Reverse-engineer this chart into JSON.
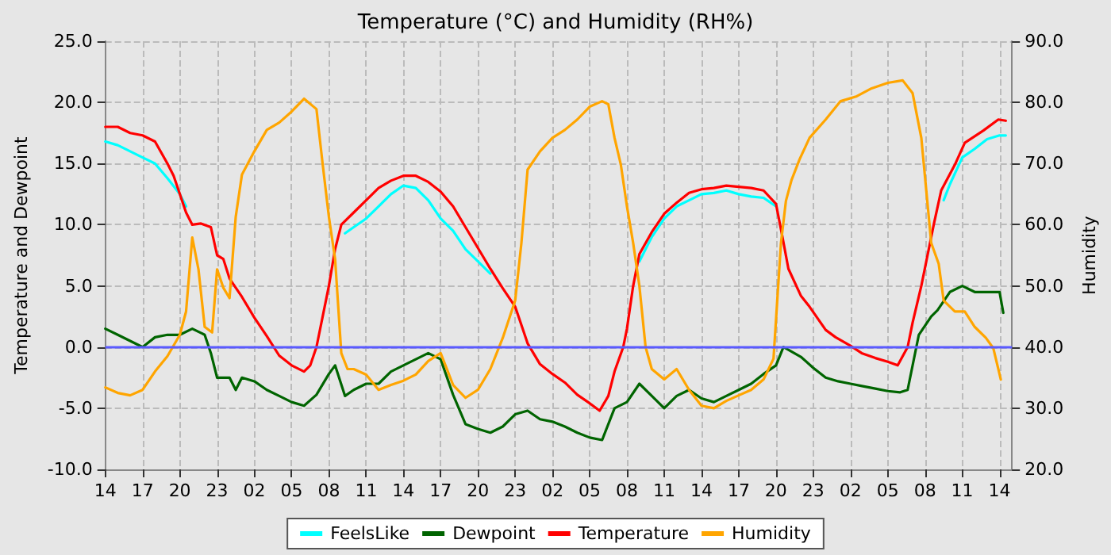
{
  "chart_data": {
    "type": "line",
    "title": "Temperature (°C) and Humidity (RH%)",
    "ylabel": "Temperature and Dewpoint",
    "y2label": "Humidity",
    "xlim": [
      "--01-01T14:00",
      "--01-04T15:00"
    ],
    "ylim": [
      -10,
      25
    ],
    "y2lim": [
      20,
      90
    ],
    "xticks": [
      {
        "value": "--01-01T14:00",
        "label": "14"
      },
      {
        "value": "--01-01T17:00",
        "label": "17"
      },
      {
        "value": "--01-01T20:00",
        "label": "20"
      },
      {
        "value": "--01-01T23:00",
        "label": "23"
      },
      {
        "value": "--01-02T02:00",
        "label": "02"
      },
      {
        "value": "--01-02T05:00",
        "label": "05"
      },
      {
        "value": "--01-02T08:00",
        "label": "08"
      },
      {
        "value": "--01-02T11:00",
        "label": "11"
      },
      {
        "value": "--01-02T14:00",
        "label": "14"
      },
      {
        "value": "--01-02T17:00",
        "label": "17"
      },
      {
        "value": "--01-02T20:00",
        "label": "20"
      },
      {
        "value": "--01-02T23:00",
        "label": "23"
      },
      {
        "value": "--01-03T02:00",
        "label": "02"
      },
      {
        "value": "--01-03T05:00",
        "label": "05"
      },
      {
        "value": "--01-03T08:00",
        "label": "08"
      },
      {
        "value": "--01-03T11:00",
        "label": "11"
      },
      {
        "value": "--01-03T14:00",
        "label": "14"
      },
      {
        "value": "--01-03T17:00",
        "label": "17"
      },
      {
        "value": "--01-03T20:00",
        "label": "20"
      },
      {
        "value": "--01-03T23:00",
        "label": "23"
      },
      {
        "value": "--01-04T02:00",
        "label": "02"
      },
      {
        "value": "--01-04T05:00",
        "label": "05"
      },
      {
        "value": "--01-04T08:00",
        "label": "08"
      },
      {
        "value": "--01-04T11:00",
        "label": "11"
      },
      {
        "value": "--01-04T14:00",
        "label": "14"
      }
    ],
    "yticks": [
      {
        "value": -10,
        "label": "-10.0"
      },
      {
        "value": -5,
        "label": "-5.0"
      },
      {
        "value": 0,
        "label": "0.0"
      },
      {
        "value": 5,
        "label": "5.0"
      },
      {
        "value": 10,
        "label": "10.0"
      },
      {
        "value": 15,
        "label": "15.0"
      },
      {
        "value": 20,
        "label": "20.0"
      },
      {
        "value": 25,
        "label": "25.0"
      }
    ],
    "y2ticks": [
      {
        "value": 20,
        "label": "20.0"
      },
      {
        "value": 30,
        "label": "30.0"
      },
      {
        "value": 40,
        "label": "40.0"
      },
      {
        "value": 50,
        "label": "50.0"
      },
      {
        "value": 60,
        "label": "60.0"
      },
      {
        "value": 70,
        "label": "70.0"
      },
      {
        "value": 80,
        "label": "80.0"
      },
      {
        "value": 90,
        "label": "90.0"
      }
    ],
    "grid": true,
    "legend": "bottom",
    "marker": "none",
    "line_style": "solid",
    "ref_lines": [
      {
        "axis": "y",
        "value": 0,
        "color": "#5a5aff"
      }
    ],
    "series": [
      {
        "name": "FeelsLike",
        "color": "#00ffff",
        "x": [
          "--01-01T14:00",
          "--01-01T15:00",
          "--01-01T16:00",
          "--01-01T17:00",
          "--01-01T18:00",
          "--01-01T19:00",
          "--01-01T20:00",
          "--01-01T20:30",
          "--01-02T03:00",
          "--01-02T09:18",
          "--01-02T10:00",
          "--01-02T11:00",
          "--01-02T12:00",
          "--01-02T13:00",
          "--01-02T14:00",
          "--01-02T15:00",
          "--01-02T16:00",
          "--01-02T17:00",
          "--01-02T18:00",
          "--01-02T19:00",
          "--01-02T20:00",
          "--01-02T21:00",
          "--01-03T03:00",
          "--01-03T09:00",
          "--01-03T10:00",
          "--01-03T11:00",
          "--01-03T12:00",
          "--01-03T13:00",
          "--01-03T14:00",
          "--01-03T15:00",
          "--01-03T16:00",
          "--01-03T17:00",
          "--01-03T18:00",
          "--01-03T19:00",
          "--01-03T20:00",
          "--01-04T02:00",
          "--01-04T09:30",
          "--01-04T10:00",
          "--01-04T11:00",
          "--01-04T12:00",
          "--01-04T13:00",
          "--01-04T14:00",
          "--01-04T14:30"
        ],
        "values": [
          16.8,
          16.5,
          16,
          15.5,
          15,
          13.8,
          12.5,
          11.5,
          null,
          9.3,
          9.8,
          10.5,
          11.5,
          12.5,
          13.2,
          13,
          12,
          10.5,
          9.5,
          8,
          7,
          6,
          null,
          7,
          9,
          10.5,
          11.5,
          12,
          12.5,
          12.6,
          12.8,
          12.5,
          12.3,
          12.2,
          11.5,
          null,
          12,
          13.3,
          15.5,
          16.2,
          17,
          17.3,
          17.3
        ]
      },
      {
        "name": "Dewpoint",
        "color": "#006400",
        "x": [
          "--01-01T14:00",
          "--01-01T15:00",
          "--01-01T16:00",
          "--01-01T17:00",
          "--01-01T18:00",
          "--01-01T19:00",
          "--01-01T20:00",
          "--01-01T21:00",
          "--01-01T22:00",
          "--01-01T22:30",
          "--01-01T23:00",
          "--01-02T00:00",
          "--01-02T00:30",
          "--01-02T01:00",
          "--01-02T02:00",
          "--01-02T03:00",
          "--01-02T04:00",
          "--01-02T05:00",
          "--01-02T06:00",
          "--01-02T07:00",
          "--01-02T08:00",
          "--01-02T08:30",
          "--01-02T09:18",
          "--01-02T10:00",
          "--01-02T11:00",
          "--01-02T12:00",
          "--01-02T13:00",
          "--01-02T14:00",
          "--01-02T15:00",
          "--01-02T16:00",
          "--01-02T17:00",
          "--01-02T18:00",
          "--01-02T19:00",
          "--01-02T20:00",
          "--01-02T21:00",
          "--01-02T22:00",
          "--01-02T23:00",
          "--01-03T00:00",
          "--01-03T01:00",
          "--01-03T02:00",
          "--01-03T03:00",
          "--01-03T04:00",
          "--01-03T05:00",
          "--01-03T06:00",
          "--01-03T07:00",
          "--01-03T08:00",
          "--01-03T09:00",
          "--01-03T10:00",
          "--01-03T11:00",
          "--01-03T12:00",
          "--01-03T13:00",
          "--01-03T14:00",
          "--01-03T15:00",
          "--01-03T16:00",
          "--01-03T17:00",
          "--01-03T18:00",
          "--01-03T19:00",
          "--01-03T20:00",
          "--01-03T20:36",
          "--01-03T22:00",
          "--01-03T23:00",
          "--01-04T00:00",
          "--01-04T01:00",
          "--01-04T02:00",
          "--01-04T03:00",
          "--01-04T04:00",
          "--01-04T05:00",
          "--01-04T06:00",
          "--01-04T06:36",
          "--01-04T07:30",
          "--01-04T08:30",
          "--01-04T09:00",
          "--01-04T10:00",
          "--01-04T11:00",
          "--01-04T12:00",
          "--01-04T13:00",
          "--01-04T14:00",
          "--01-04T14:18"
        ],
        "values": [
          1.5,
          1,
          0.5,
          0,
          0.8,
          1,
          1,
          1.5,
          1,
          -0.5,
          -2.5,
          -2.5,
          -3.5,
          -2.5,
          -2.8,
          -3.5,
          -4,
          -4.5,
          -4.8,
          -3.9,
          -2.2,
          -1.5,
          -4,
          -3.5,
          -3,
          -3,
          -2,
          -1.5,
          -1,
          -0.5,
          -1,
          -3.9,
          -6.3,
          -6.7,
          -7,
          -6.5,
          -5.5,
          -5.2,
          -5.9,
          -6.1,
          -6.5,
          -7,
          -7.4,
          -7.6,
          -5,
          -4.5,
          -3,
          -4,
          -5,
          -4,
          -3.5,
          -4.2,
          -4.5,
          -4,
          -3.5,
          -3,
          -2.2,
          -1.5,
          0,
          -0.8,
          -1.7,
          -2.5,
          -2.8,
          -3,
          -3.2,
          -3.4,
          -3.6,
          -3.7,
          -3.5,
          1,
          2.5,
          3,
          4.5,
          5,
          4.5,
          4.5,
          4.5,
          2.8
        ]
      },
      {
        "name": "Temperature",
        "color": "#ff0000",
        "x": [
          "--01-01T14:00",
          "--01-01T15:00",
          "--01-01T16:00",
          "--01-01T17:00",
          "--01-01T18:00",
          "--01-01T19:00",
          "--01-01T19:30",
          "--01-01T20:00",
          "--01-01T20:30",
          "--01-01T21:00",
          "--01-01T21:42",
          "--01-01T22:30",
          "--01-01T23:00",
          "--01-01T23:30",
          "--01-02T00:00",
          "--01-02T01:00",
          "--01-02T02:00",
          "--01-02T03:00",
          "--01-02T04:00",
          "--01-02T05:00",
          "--01-02T06:00",
          "--01-02T06:30",
          "--01-02T07:00",
          "--01-02T08:00",
          "--01-02T08:30",
          "--01-02T09:00",
          "--01-02T10:00",
          "--01-02T11:00",
          "--01-02T12:00",
          "--01-02T13:00",
          "--01-02T14:00",
          "--01-02T15:00",
          "--01-02T16:00",
          "--01-02T17:00",
          "--01-02T18:00",
          "--01-02T19:00",
          "--01-02T20:00",
          "--01-02T21:00",
          "--01-02T22:00",
          "--01-02T23:00",
          "--01-03T00:00",
          "--01-03T01:00",
          "--01-03T02:00",
          "--01-03T03:00",
          "--01-03T04:00",
          "--01-03T05:00",
          "--01-03T05:48",
          "--01-03T06:30",
          "--01-03T07:00",
          "--01-03T07:42",
          "--01-03T08:00",
          "--01-03T08:30",
          "--01-03T09:00",
          "--01-03T10:00",
          "--01-03T11:00",
          "--01-03T12:00",
          "--01-03T13:00",
          "--01-03T14:00",
          "--01-03T15:00",
          "--01-03T16:00",
          "--01-03T17:00",
          "--01-03T18:00",
          "--01-03T19:00",
          "--01-03T20:00",
          "--01-03T20:30",
          "--01-03T21:00",
          "--01-03T22:00",
          "--01-03T22:42",
          "--01-04T00:00",
          "--01-04T00:48",
          "--01-04T02:00",
          "--01-04T02:54",
          "--01-04T04:00",
          "--01-04T05:00",
          "--01-04T05:48",
          "--01-04T06:36",
          "--01-04T07:00",
          "--01-04T07:42",
          "--01-04T08:12",
          "--01-04T08:42",
          "--01-04T09:18",
          "--01-04T10:24",
          "--01-04T11:12",
          "--01-04T12:42",
          "--01-04T13:54",
          "--01-04T14:30"
        ],
        "values": [
          18,
          18,
          17.5,
          17.3,
          16.8,
          15,
          14,
          12.5,
          11,
          10,
          10.1,
          9.8,
          7.5,
          7.2,
          5.6,
          4.1,
          2.4,
          0.9,
          -0.7,
          -1.5,
          -2,
          -1.5,
          0,
          5,
          8,
          10,
          11,
          12,
          13,
          13.6,
          14,
          14,
          13.5,
          12.7,
          11.5,
          9.8,
          8.1,
          6.4,
          4.8,
          3.3,
          0.3,
          -1.4,
          -2.2,
          -2.9,
          -3.9,
          -4.6,
          -5.2,
          -4,
          -2,
          0,
          1.5,
          5,
          7.6,
          9.4,
          10.9,
          11.8,
          12.6,
          12.9,
          13,
          13.2,
          13.1,
          13,
          12.8,
          11.7,
          9.1,
          6.4,
          4.2,
          3.3,
          1.4,
          0.8,
          0.1,
          -0.5,
          -0.9,
          -1.2,
          -1.5,
          0,
          2,
          5,
          7.5,
          10,
          12.8,
          14.9,
          16.7,
          17.7,
          18.6,
          18.5
        ]
      },
      {
        "name": "Humidity",
        "color": "#ffa500",
        "axis": "y2",
        "x": [
          "--01-01T14:00",
          "--01-01T15:00",
          "--01-01T16:00",
          "--01-01T17:00",
          "--01-01T18:00",
          "--01-01T19:00",
          "--01-01T20:00",
          "--01-01T20:30",
          "--01-01T21:00",
          "--01-01T21:30",
          "--01-01T22:00",
          "--01-01T22:36",
          "--01-01T23:00",
          "--01-01T23:30",
          "--01-02T00:00",
          "--01-02T00:30",
          "--01-02T01:00",
          "--01-02T02:00",
          "--01-02T03:00",
          "--01-02T04:00",
          "--01-02T05:00",
          "--01-02T06:00",
          "--01-02T07:00",
          "--01-02T07:30",
          "--01-02T08:00",
          "--01-02T08:30",
          "--01-02T09:00",
          "--01-02T09:30",
          "--01-02T10:00",
          "--01-02T11:00",
          "--01-02T12:00",
          "--01-02T13:00",
          "--01-02T14:00",
          "--01-02T15:00",
          "--01-02T16:00",
          "--01-02T17:00",
          "--01-02T18:00",
          "--01-02T19:00",
          "--01-02T20:00",
          "--01-02T21:00",
          "--01-02T22:00",
          "--01-02T23:00",
          "--01-02T23:30",
          "--01-03T00:00",
          "--01-03T01:00",
          "--01-03T02:00",
          "--01-03T03:00",
          "--01-03T04:00",
          "--01-03T05:00",
          "--01-03T06:00",
          "--01-03T06:30",
          "--01-03T07:00",
          "--01-03T07:30",
          "--01-03T08:00",
          "--01-03T08:30",
          "--01-03T09:00",
          "--01-03T09:30",
          "--01-03T10:00",
          "--01-03T11:00",
          "--01-03T12:00",
          "--01-03T13:00",
          "--01-03T14:00",
          "--01-03T15:00",
          "--01-03T16:00",
          "--01-03T17:00",
          "--01-03T18:00",
          "--01-03T19:00",
          "--01-03T19:48",
          "--01-03T20:06",
          "--01-03T20:24",
          "--01-03T20:48",
          "--01-03T21:15",
          "--01-03T21:54",
          "--01-03T22:42",
          "--01-04T00:00",
          "--01-04T01:12",
          "--01-04T02:30",
          "--01-04T03:42",
          "--01-04T05:00",
          "--01-04T06:12",
          "--01-04T07:00",
          "--01-04T07:42",
          "--01-04T08:06",
          "--01-04T08:30",
          "--01-04T09:06",
          "--01-04T09:30",
          "--01-04T10:24",
          "--01-04T11:12",
          "--01-04T12:00",
          "--01-04T12:54",
          "--01-04T13:30",
          "--01-04T13:54",
          "--01-04T14:06"
        ],
        "values": [
          33.4,
          32.5,
          32.1,
          33,
          36,
          38.5,
          42,
          45.8,
          57.9,
          52.7,
          43.3,
          42.4,
          52.7,
          49.7,
          48,
          61.3,
          68.2,
          72,
          75.5,
          76.7,
          78.5,
          80.6,
          78.9,
          69.9,
          61.3,
          54.4,
          39,
          36.4,
          36.4,
          35.5,
          33,
          33.8,
          34.5,
          35.5,
          37.7,
          39,
          33.8,
          31.7,
          33,
          36.4,
          41.5,
          47.6,
          57,
          69,
          72,
          74.2,
          75.5,
          77.2,
          79.3,
          80.2,
          79.7,
          74.2,
          69.9,
          63,
          57,
          50,
          40,
          36.4,
          34.7,
          36.4,
          33,
          30.4,
          30,
          31.2,
          32.1,
          33,
          34.7,
          38.1,
          47.6,
          57,
          63.9,
          67.3,
          70.7,
          74.2,
          77.2,
          80.2,
          81,
          82.3,
          83.2,
          83.6,
          81.5,
          74.2,
          65.6,
          57,
          53.6,
          47.6,
          45.8,
          45.8,
          43.3,
          41.5,
          39.8,
          36.4,
          34.7
        ]
      }
    ]
  }
}
